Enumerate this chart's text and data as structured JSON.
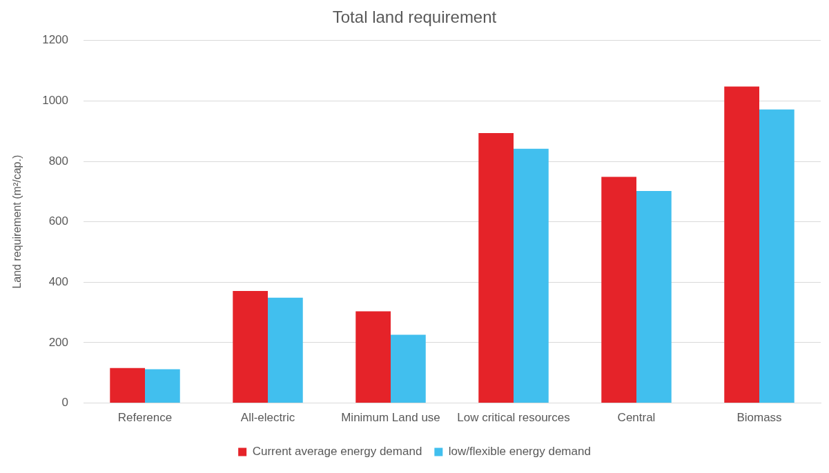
{
  "chart_data": {
    "type": "bar",
    "title": "Total land requirement",
    "ylabel": "Land requirement (m²/cap.)",
    "categories": [
      "Reference",
      "All-electric",
      "Minimum Land use",
      "Low critical resources",
      "Central",
      "Biomass"
    ],
    "series": [
      {
        "name": "Current average energy demand",
        "color": "#e52329",
        "values": [
          116,
          371,
          304,
          894,
          749,
          1048
        ]
      },
      {
        "name": "low/flexible energy demand",
        "color": "#41bfee",
        "values": [
          112,
          349,
          226,
          842,
          702,
          972
        ]
      }
    ],
    "ylim": [
      0,
      1200
    ],
    "yticks": [
      0,
      200,
      400,
      600,
      800,
      1000,
      1200
    ],
    "grid": "y",
    "legend": "bottom"
  }
}
